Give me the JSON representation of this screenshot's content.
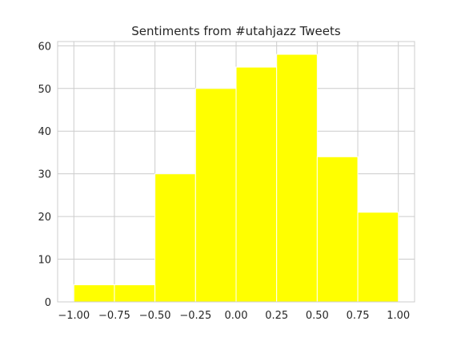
{
  "chart_data": {
    "type": "bar",
    "title": "Sentiments from #utahjazz Tweets",
    "xlabel": "",
    "ylabel": "",
    "bins": [
      {
        "start": -1.0,
        "end": -0.75,
        "count": 4
      },
      {
        "start": -0.75,
        "end": -0.5,
        "count": 4
      },
      {
        "start": -0.5,
        "end": -0.25,
        "count": 30
      },
      {
        "start": -0.25,
        "end": 0.0,
        "count": 50
      },
      {
        "start": 0.0,
        "end": 0.25,
        "count": 55
      },
      {
        "start": 0.25,
        "end": 0.5,
        "count": 58
      },
      {
        "start": 0.5,
        "end": 0.75,
        "count": 34
      },
      {
        "start": 0.75,
        "end": 1.0,
        "count": 21
      }
    ],
    "xlim": [
      -1.1,
      1.1
    ],
    "ylim": [
      0,
      61
    ],
    "x_ticks": [
      {
        "value": -1.0,
        "label": "−1.00"
      },
      {
        "value": -0.75,
        "label": "−0.75"
      },
      {
        "value": -0.5,
        "label": "−0.50"
      },
      {
        "value": -0.25,
        "label": "−0.25"
      },
      {
        "value": 0.0,
        "label": "0.00"
      },
      {
        "value": 0.25,
        "label": "0.25"
      },
      {
        "value": 0.5,
        "label": "0.50"
      },
      {
        "value": 0.75,
        "label": "0.75"
      },
      {
        "value": 1.0,
        "label": "1.00"
      }
    ],
    "y_ticks": [
      {
        "value": 0,
        "label": "0"
      },
      {
        "value": 10,
        "label": "10"
      },
      {
        "value": 20,
        "label": "20"
      },
      {
        "value": 30,
        "label": "30"
      },
      {
        "value": 40,
        "label": "40"
      },
      {
        "value": 50,
        "label": "50"
      },
      {
        "value": 60,
        "label": "60"
      }
    ],
    "grid": true,
    "bar_color": "#ffff00",
    "bar_edge_color": "#ffffff",
    "grid_color": "#cccccc",
    "axes_color": "#cccccc",
    "text_color": "#262626"
  }
}
